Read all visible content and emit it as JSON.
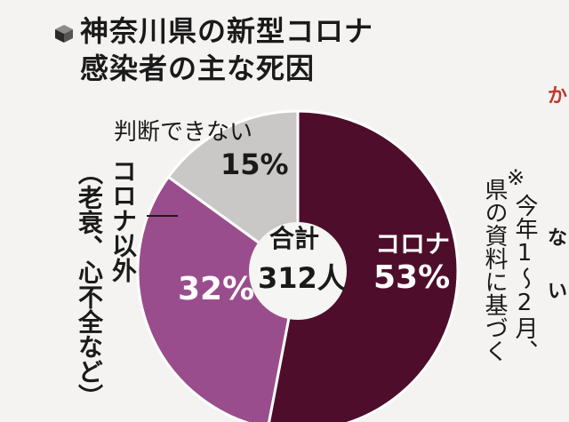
{
  "title": {
    "line1": "神奈川県の新型コロナ",
    "line2": "感染者の主な死因"
  },
  "colors": {
    "corona": "#4e0d2b",
    "other": "#9a4d8c",
    "unknown": "#c9c8c6",
    "hole": "#f5f5f3",
    "text": "#1a1a1a",
    "white": "#ffffff"
  },
  "chart_data": {
    "type": "pie",
    "center_label": [
      "合計",
      "312人"
    ],
    "slices": [
      {
        "label": "コロナ",
        "value": 53,
        "display": "53%"
      },
      {
        "label": "コロナ以外（老衰、心不全など）",
        "value": 32,
        "display": "32%"
      },
      {
        "label": "判断できない",
        "value": 15,
        "display": "15%"
      }
    ]
  },
  "labels": {
    "corona": "コロナ",
    "corona_pct": "53%",
    "other_pct": "32%",
    "unknown_label": "判断できない",
    "unknown_pct": "15%",
    "other_line1": "コロナ以外",
    "other_line2": "（老衰、心不全など）",
    "center_line1": "合計",
    "center_line2": "312人"
  },
  "note": {
    "mark": "※",
    "line1": "今年1～2月、",
    "line2": "県の資料に基づく"
  },
  "side_glyphs": [
    "か",
    "な",
    "い"
  ]
}
